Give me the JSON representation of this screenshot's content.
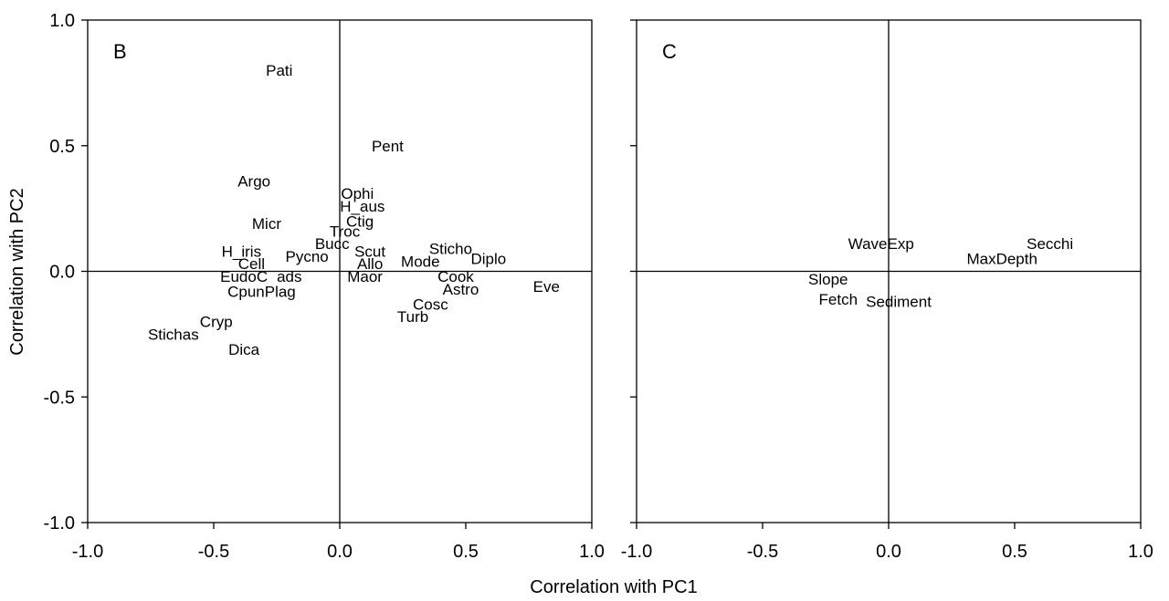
{
  "chart_data": [
    {
      "type": "scatter",
      "panel_label": "B",
      "xlim": [
        -1.0,
        1.0
      ],
      "ylim": [
        -1.0,
        1.0
      ],
      "xticks": [
        "-1.0",
        "-0.5",
        "0.0",
        "0.5",
        "1.0"
      ],
      "yticks": [
        "-1.0",
        "-0.5",
        "0.0",
        "0.5",
        "1.0"
      ],
      "show_yticks": true,
      "points": [
        {
          "label": "Pati",
          "x": -0.24,
          "y": 0.8
        },
        {
          "label": "Pent",
          "x": 0.19,
          "y": 0.5
        },
        {
          "label": "Argo",
          "x": -0.34,
          "y": 0.36
        },
        {
          "label": "Ophi",
          "x": 0.07,
          "y": 0.31
        },
        {
          "label": "H_aus",
          "x": 0.09,
          "y": 0.26
        },
        {
          "label": "Ctig",
          "x": 0.08,
          "y": 0.2
        },
        {
          "label": "Micr",
          "x": -0.29,
          "y": 0.19
        },
        {
          "label": "Troc",
          "x": 0.02,
          "y": 0.16
        },
        {
          "label": "Bucc",
          "x": -0.03,
          "y": 0.11
        },
        {
          "label": "Scut",
          "x": 0.12,
          "y": 0.08
        },
        {
          "label": "Sticho",
          "x": 0.44,
          "y": 0.09
        },
        {
          "label": "H_iris",
          "x": -0.39,
          "y": 0.08
        },
        {
          "label": "Pycno",
          "x": -0.13,
          "y": 0.06
        },
        {
          "label": "Mode",
          "x": 0.32,
          "y": 0.04
        },
        {
          "label": "Diplo",
          "x": 0.59,
          "y": 0.05
        },
        {
          "label": "Allo",
          "x": 0.12,
          "y": 0.03
        },
        {
          "label": "Cell",
          "x": -0.35,
          "y": 0.03
        },
        {
          "label": "EudoC",
          "x": -0.38,
          "y": -0.02
        },
        {
          "label": "ads",
          "x": -0.2,
          "y": -0.02
        },
        {
          "label": "Maor",
          "x": 0.1,
          "y": -0.02
        },
        {
          "label": "Cook",
          "x": 0.46,
          "y": -0.02
        },
        {
          "label": "Eve",
          "x": 0.82,
          "y": -0.06
        },
        {
          "label": "CpunPlag",
          "x": -0.31,
          "y": -0.08
        },
        {
          "label": "Astro",
          "x": 0.48,
          "y": -0.07
        },
        {
          "label": "Cosc",
          "x": 0.36,
          "y": -0.13
        },
        {
          "label": "Turb",
          "x": 0.29,
          "y": -0.18
        },
        {
          "label": "Cryp",
          "x": -0.49,
          "y": -0.2
        },
        {
          "label": "Stichas",
          "x": -0.66,
          "y": -0.25
        },
        {
          "label": "Dica",
          "x": -0.38,
          "y": -0.31
        }
      ]
    },
    {
      "type": "scatter",
      "panel_label": "C",
      "xlim": [
        -1.0,
        1.0
      ],
      "ylim": [
        -1.0,
        1.0
      ],
      "xticks": [
        "-1.0",
        "-0.5",
        "0.0",
        "0.5",
        "1.0"
      ],
      "yticks": [
        "-1.0",
        "-0.5",
        "0.0",
        "0.5",
        "1.0"
      ],
      "show_yticks": false,
      "points": [
        {
          "label": "WaveExp",
          "x": -0.03,
          "y": 0.11
        },
        {
          "label": "Secchi",
          "x": 0.64,
          "y": 0.11
        },
        {
          "label": "MaxDepth",
          "x": 0.45,
          "y": 0.05
        },
        {
          "label": "Slope",
          "x": -0.24,
          "y": -0.03
        },
        {
          "label": "Fetch",
          "x": -0.2,
          "y": -0.11
        },
        {
          "label": "Sediment",
          "x": 0.04,
          "y": -0.12
        }
      ]
    }
  ],
  "shared": {
    "xlabel": "Correlation with PC1",
    "ylabel": "Correlation with PC2"
  }
}
